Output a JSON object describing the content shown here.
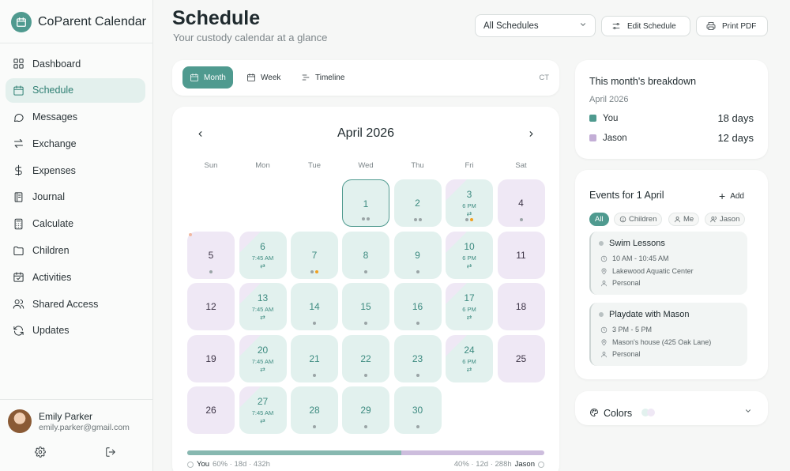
{
  "app": {
    "title": "CoParent Calendar"
  },
  "sidebar": {
    "items": [
      {
        "label": "Dashboard",
        "icon": "grid-icon",
        "active": false
      },
      {
        "label": "Schedule",
        "icon": "calendar-icon",
        "active": true
      },
      {
        "label": "Messages",
        "icon": "message-icon",
        "active": false
      },
      {
        "label": "Exchange",
        "icon": "swap-icon",
        "active": false
      },
      {
        "label": "Expenses",
        "icon": "dollar-icon",
        "active": false
      },
      {
        "label": "Journal",
        "icon": "journal-icon",
        "active": false
      },
      {
        "label": "Calculate",
        "icon": "calculator-icon",
        "active": false
      },
      {
        "label": "Children",
        "icon": "folder-icon",
        "active": false
      },
      {
        "label": "Activities",
        "icon": "calendar-check-icon",
        "active": false
      },
      {
        "label": "Shared Access",
        "icon": "users-icon",
        "active": false
      },
      {
        "label": "Updates",
        "icon": "refresh-icon",
        "active": false
      }
    ],
    "profile": {
      "name": "Emily Parker",
      "email": "emily.parker@gmail.com"
    }
  },
  "header": {
    "title": "Schedule",
    "subtitle": "Your custody calendar at a glance",
    "schedule_select": "All Schedules",
    "edit_label": "Edit Schedule",
    "print_label": "Print PDF"
  },
  "views": {
    "tabs": [
      {
        "label": "Month",
        "active": true
      },
      {
        "label": "Week",
        "active": false
      },
      {
        "label": "Timeline",
        "active": false
      }
    ],
    "timezone": "CT"
  },
  "calendar": {
    "month_label": "April 2026",
    "weekdays": [
      "Sun",
      "Mon",
      "Tue",
      "Wed",
      "Thu",
      "Fri",
      "Sat"
    ],
    "days": [
      {
        "n": "1",
        "col": 3,
        "row": 0,
        "type": "mint",
        "today": true,
        "time": "",
        "swap": false,
        "dots": [
          "g",
          "g"
        ],
        "corner": false
      },
      {
        "n": "2",
        "col": 4,
        "row": 0,
        "type": "mint",
        "today": false,
        "time": "",
        "swap": false,
        "dots": [
          "g",
          "g"
        ],
        "corner": false
      },
      {
        "n": "3",
        "col": 5,
        "row": 0,
        "type": "half",
        "today": false,
        "time": "6 PM",
        "swap": true,
        "dots": [
          "g",
          "o"
        ],
        "corner": false
      },
      {
        "n": "4",
        "col": 6,
        "row": 0,
        "type": "lav",
        "today": false,
        "time": "",
        "swap": false,
        "dots": [
          "g"
        ],
        "corner": false
      },
      {
        "n": "5",
        "col": 0,
        "row": 1,
        "type": "lav",
        "today": false,
        "time": "",
        "swap": false,
        "dots": [
          "g"
        ],
        "corner": true
      },
      {
        "n": "6",
        "col": 1,
        "row": 1,
        "type": "half",
        "today": false,
        "time": "7:45 AM",
        "swap": true,
        "dots": [],
        "corner": false
      },
      {
        "n": "7",
        "col": 2,
        "row": 1,
        "type": "mint",
        "today": false,
        "time": "",
        "swap": false,
        "dots": [
          "g",
          "o"
        ],
        "corner": false
      },
      {
        "n": "8",
        "col": 3,
        "row": 1,
        "type": "mint",
        "today": false,
        "time": "",
        "swap": false,
        "dots": [
          "g"
        ],
        "corner": false
      },
      {
        "n": "9",
        "col": 4,
        "row": 1,
        "type": "mint",
        "today": false,
        "time": "",
        "swap": false,
        "dots": [
          "g"
        ],
        "corner": false
      },
      {
        "n": "10",
        "col": 5,
        "row": 1,
        "type": "half",
        "today": false,
        "time": "6 PM",
        "swap": true,
        "dots": [],
        "corner": false
      },
      {
        "n": "11",
        "col": 6,
        "row": 1,
        "type": "lav",
        "today": false,
        "time": "",
        "swap": false,
        "dots": [],
        "corner": false
      },
      {
        "n": "12",
        "col": 0,
        "row": 2,
        "type": "lav",
        "today": false,
        "time": "",
        "swap": false,
        "dots": [],
        "corner": false
      },
      {
        "n": "13",
        "col": 1,
        "row": 2,
        "type": "half",
        "today": false,
        "time": "7:45 AM",
        "swap": true,
        "dots": [],
        "corner": false
      },
      {
        "n": "14",
        "col": 2,
        "row": 2,
        "type": "mint",
        "today": false,
        "time": "",
        "swap": false,
        "dots": [
          "g"
        ],
        "corner": false
      },
      {
        "n": "15",
        "col": 3,
        "row": 2,
        "type": "mint",
        "today": false,
        "time": "",
        "swap": false,
        "dots": [
          "g"
        ],
        "corner": false
      },
      {
        "n": "16",
        "col": 4,
        "row": 2,
        "type": "mint",
        "today": false,
        "time": "",
        "swap": false,
        "dots": [
          "g"
        ],
        "corner": false
      },
      {
        "n": "17",
        "col": 5,
        "row": 2,
        "type": "half",
        "today": false,
        "time": "6 PM",
        "swap": true,
        "dots": [],
        "corner": false
      },
      {
        "n": "18",
        "col": 6,
        "row": 2,
        "type": "lav",
        "today": false,
        "time": "",
        "swap": false,
        "dots": [],
        "corner": false
      },
      {
        "n": "19",
        "col": 0,
        "row": 3,
        "type": "lav",
        "today": false,
        "time": "",
        "swap": false,
        "dots": [],
        "corner": false
      },
      {
        "n": "20",
        "col": 1,
        "row": 3,
        "type": "half",
        "today": false,
        "time": "7:45 AM",
        "swap": true,
        "dots": [],
        "corner": false
      },
      {
        "n": "21",
        "col": 2,
        "row": 3,
        "type": "mint",
        "today": false,
        "time": "",
        "swap": false,
        "dots": [
          "g"
        ],
        "corner": false
      },
      {
        "n": "22",
        "col": 3,
        "row": 3,
        "type": "mint",
        "today": false,
        "time": "",
        "swap": false,
        "dots": [
          "g"
        ],
        "corner": false
      },
      {
        "n": "23",
        "col": 4,
        "row": 3,
        "type": "mint",
        "today": false,
        "time": "",
        "swap": false,
        "dots": [
          "g"
        ],
        "corner": false
      },
      {
        "n": "24",
        "col": 5,
        "row": 3,
        "type": "half",
        "today": false,
        "time": "6 PM",
        "swap": true,
        "dots": [],
        "corner": false
      },
      {
        "n": "25",
        "col": 6,
        "row": 3,
        "type": "lav",
        "today": false,
        "time": "",
        "swap": false,
        "dots": [],
        "corner": false
      },
      {
        "n": "26",
        "col": 0,
        "row": 4,
        "type": "lav",
        "today": false,
        "time": "",
        "swap": false,
        "dots": [],
        "corner": false
      },
      {
        "n": "27",
        "col": 1,
        "row": 4,
        "type": "half",
        "today": false,
        "time": "7:45 AM",
        "swap": true,
        "dots": [],
        "corner": false
      },
      {
        "n": "28",
        "col": 2,
        "row": 4,
        "type": "mint",
        "today": false,
        "time": "",
        "swap": false,
        "dots": [
          "g"
        ],
        "corner": false
      },
      {
        "n": "29",
        "col": 3,
        "row": 4,
        "type": "mint",
        "today": false,
        "time": "",
        "swap": false,
        "dots": [
          "g"
        ],
        "corner": false
      },
      {
        "n": "30",
        "col": 4,
        "row": 4,
        "type": "mint",
        "today": false,
        "time": "",
        "swap": false,
        "dots": [
          "g"
        ],
        "corner": false
      }
    ],
    "split": {
      "you_fraction": 0.6,
      "left_label": "You",
      "left_stats": "60% · 18d · 432h",
      "right_stats": "40% · 12d · 288h",
      "right_label": "Jason"
    }
  },
  "breakdown": {
    "title": "This month's breakdown",
    "month": "April 2026",
    "rows": [
      {
        "label": "You",
        "value": "18 days",
        "color": "#4f9a8f"
      },
      {
        "label": "Jason",
        "value": "12 days",
        "color": "#c3aed6"
      }
    ]
  },
  "events": {
    "title": "Events for 1 April",
    "add_label": "Add",
    "filters": [
      {
        "label": "All",
        "active": true,
        "icon": ""
      },
      {
        "label": "Children",
        "active": false,
        "icon": "child-icon"
      },
      {
        "label": "Me",
        "active": false,
        "icon": "user-icon"
      },
      {
        "label": "Jason",
        "active": false,
        "icon": "users-icon"
      }
    ],
    "list": [
      {
        "name": "Swim Lessons",
        "time": "10 AM - 10:45 AM",
        "location": "Lakewood Aquatic Center",
        "owner": "Personal"
      },
      {
        "name": "Playdate with Mason",
        "time": "3 PM - 5 PM",
        "location": "Mason's house (425 Oak Lane)",
        "owner": "Personal"
      }
    ]
  },
  "colors_panel": {
    "label": "Colors"
  },
  "theme": {
    "accent": "#4f9a8f",
    "mint": "#e2f1ee",
    "lavender": "#efe8f5"
  }
}
